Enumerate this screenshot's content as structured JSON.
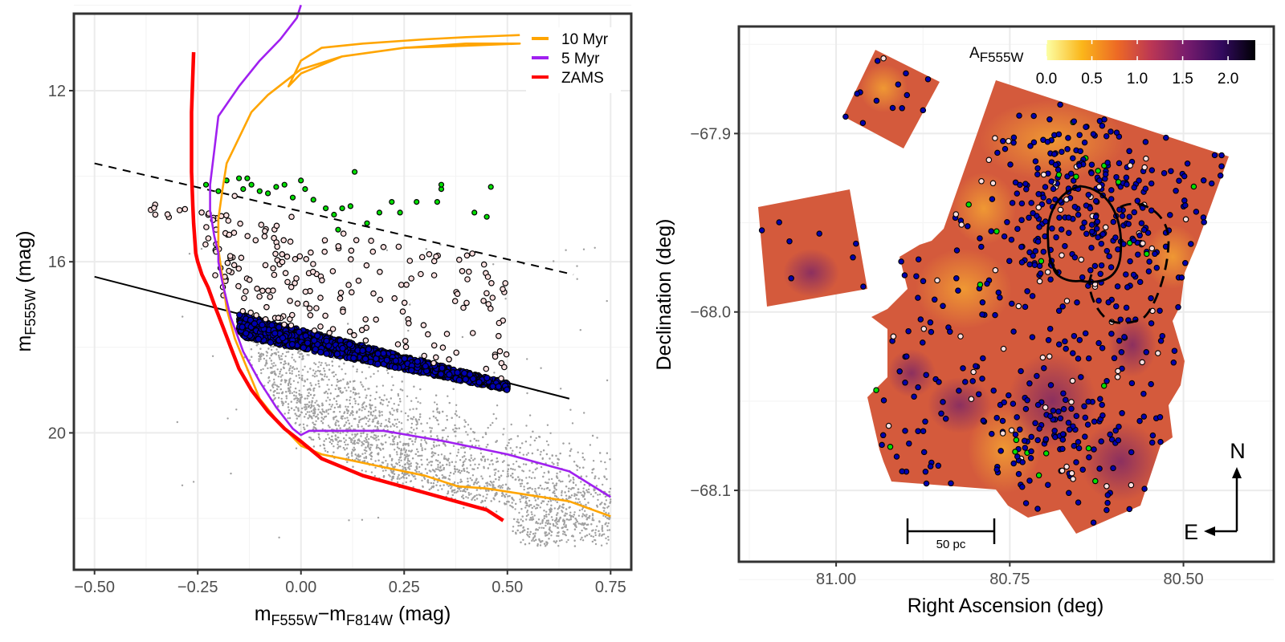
{
  "chart_data": [
    {
      "type": "scatter",
      "panel": "color-magnitude diagram",
      "xlabel_main": "m",
      "xlabel_sub1": "F555W",
      "xlabel_minus": "−m",
      "xlabel_sub2": "F814W",
      "xlabel_unit": " (mag)",
      "ylabel_main": "m",
      "ylabel_sub": "F555W",
      "ylabel_unit": " (mag)",
      "xlim": [
        -0.55,
        0.8
      ],
      "ylim": [
        23.2,
        10.2
      ],
      "y_reversed": true,
      "x_ticks": [
        -0.5,
        -0.25,
        0.0,
        0.25,
        0.5,
        0.75
      ],
      "x_tick_labels": [
        "−0.50",
        "−0.25",
        "0.00",
        "0.25",
        "0.50",
        "0.75"
      ],
      "y_ticks": [
        12,
        16,
        20
      ],
      "y_tick_labels": [
        "12",
        "16",
        "20"
      ],
      "grid": true,
      "legend": [
        "10 Myr",
        "5 Myr",
        "ZAMS"
      ],
      "legend_position": "top-right",
      "series_colors": {
        "10 Myr": "#FFA500",
        "5 Myr": "#A020F0",
        "ZAMS": "#FF0000"
      },
      "isochrones": [
        {
          "name": "ZAMS",
          "x": [
            -0.26,
            -0.265,
            -0.265,
            -0.262,
            -0.26,
            -0.257,
            -0.255,
            -0.25,
            -0.24,
            -0.225,
            -0.21,
            -0.19,
            -0.17,
            -0.15,
            -0.12,
            -0.08,
            -0.04,
            0.0,
            0.05,
            0.15,
            0.3,
            0.45,
            0.49
          ],
          "y": [
            11.1,
            12.5,
            13.9,
            14.7,
            15.1,
            15.5,
            15.8,
            16.0,
            16.3,
            16.6,
            17.0,
            17.5,
            18.0,
            18.5,
            19.0,
            19.5,
            19.9,
            20.2,
            20.6,
            21.0,
            21.4,
            21.8,
            22.05
          ]
        },
        {
          "name": "5 Myr",
          "x": [
            0.0,
            -0.01,
            -0.05,
            -0.1,
            -0.15,
            -0.2,
            -0.21,
            -0.22,
            -0.22,
            -0.21,
            -0.2,
            -0.2,
            -0.19,
            -0.17,
            -0.14,
            -0.1,
            -0.06,
            -0.02,
            0.0,
            0.02,
            0.05,
            0.1,
            0.2,
            0.35,
            0.5,
            0.65,
            0.75
          ],
          "y": [
            10.0,
            10.3,
            10.8,
            11.3,
            11.9,
            12.6,
            13.4,
            14.2,
            14.8,
            15.4,
            15.8,
            16.0,
            16.5,
            17.3,
            18.1,
            18.8,
            19.4,
            19.9,
            20.05,
            19.95,
            19.95,
            19.95,
            19.95,
            20.2,
            20.5,
            20.9,
            21.5
          ]
        },
        {
          "name": "10 Myr",
          "x": [
            0.53,
            0.4,
            0.3,
            0.15,
            0.05,
            0.0,
            -0.03,
            0.0,
            0.1,
            0.25,
            0.4,
            0.53,
            0.4,
            0.25,
            0.1,
            0.0,
            -0.08,
            -0.12,
            -0.14,
            -0.16,
            -0.18,
            -0.19,
            -0.2,
            -0.2,
            -0.19,
            -0.18,
            -0.16,
            -0.13,
            -0.1,
            -0.05,
            0.0,
            0.05,
            0.1,
            0.2,
            0.3,
            0.38,
            0.45,
            0.55,
            0.65,
            0.75
          ],
          "y": [
            10.7,
            10.75,
            10.8,
            10.9,
            11.0,
            11.3,
            11.9,
            11.6,
            11.2,
            11.0,
            10.9,
            10.9,
            10.95,
            11.0,
            11.2,
            11.5,
            12.1,
            12.5,
            12.9,
            13.3,
            13.7,
            14.3,
            15.0,
            15.7,
            16.4,
            17.1,
            17.8,
            18.5,
            19.2,
            19.8,
            20.3,
            20.5,
            20.6,
            20.8,
            21.0,
            21.25,
            21.3,
            21.45,
            21.6,
            21.95
          ]
        }
      ],
      "cut_lines": [
        {
          "style": "solid",
          "x": [
            -0.5,
            0.65
          ],
          "y": [
            16.35,
            19.2
          ]
        },
        {
          "style": "dashed",
          "x": [
            -0.5,
            0.66
          ],
          "y": [
            13.7,
            16.3
          ]
        }
      ],
      "point_groups": [
        {
          "name": "field stars",
          "color": "#a0a0a0",
          "marker": "small-dot"
        },
        {
          "name": "lower selected",
          "color": "#0000b0",
          "marker": "circle"
        },
        {
          "name": "upper selected",
          "color": "#ffe0e0",
          "marker": "circle"
        },
        {
          "name": "brightest",
          "color": "#00e000",
          "marker": "circle"
        }
      ]
    },
    {
      "type": "heatmap",
      "panel": "extinction map",
      "xlabel": "Right Ascension (deg)",
      "ylabel": "Declination (deg)",
      "xlim": [
        81.14,
        80.37
      ],
      "ylim": [
        -68.14,
        -67.84
      ],
      "x_reversed": true,
      "x_ticks": [
        81.0,
        80.75,
        80.5
      ],
      "x_tick_labels": [
        "81.00",
        "80.75",
        "80.50"
      ],
      "y_ticks": [
        -67.9,
        -68.0,
        -68.1
      ],
      "y_tick_labels": [
        "−67.9",
        "−68.0",
        "−68.1"
      ],
      "grid": true,
      "colorbar_title_main": "A",
      "colorbar_title_sub": "F555W",
      "colorbar_ticks": [
        0.0,
        0.5,
        1.0,
        1.5,
        2.0
      ],
      "colorbar_tick_labels": [
        "0.0",
        "0.5",
        "1.0",
        "1.5",
        "2.0"
      ],
      "colorbar_range": [
        0.0,
        2.3
      ],
      "colormap": "inferno-reversed",
      "scale_bar_label": "50 pc",
      "compass_north": "N",
      "compass_east": "E",
      "contours": [
        {
          "style": "solid",
          "name": "inner region"
        },
        {
          "style": "dashed",
          "name": "outer region"
        }
      ]
    }
  ],
  "colors": {
    "frame": "#333333",
    "grid": "#ebebeb",
    "field": "#a0a0a0",
    "blue_stars": "#0000b0",
    "pink_stars": "#ffe0e0",
    "green_stars": "#00e000"
  }
}
